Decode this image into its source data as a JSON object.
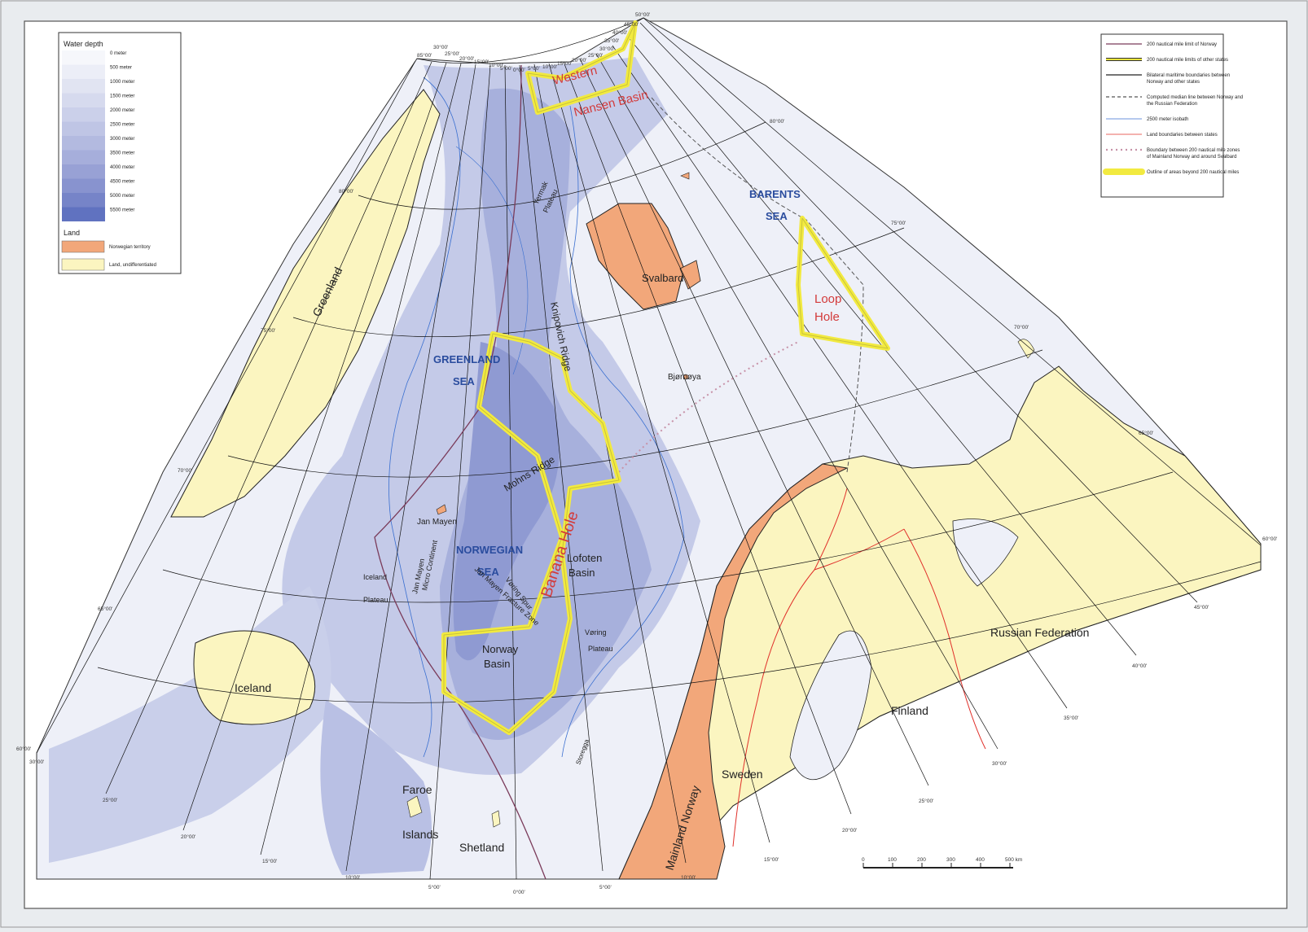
{
  "legend_depth": {
    "title": "Water depth",
    "levels": [
      {
        "label": "0 meter",
        "color": "#f6f7fb"
      },
      {
        "label": "500 meter",
        "color": "#eceef7"
      },
      {
        "label": "1000 meter",
        "color": "#e1e4f2"
      },
      {
        "label": "1500 meter",
        "color": "#d6daee"
      },
      {
        "label": "2000 meter",
        "color": "#cbd0ea"
      },
      {
        "label": "2500 meter",
        "color": "#bfc5e5"
      },
      {
        "label": "3000 meter",
        "color": "#b3bae0"
      },
      {
        "label": "3500 meter",
        "color": "#a6aedb"
      },
      {
        "label": "4000 meter",
        "color": "#98a1d5"
      },
      {
        "label": "4500 meter",
        "color": "#8893cf"
      },
      {
        "label": "5000 meter",
        "color": "#7684c8"
      },
      {
        "label": "5500 meter",
        "color": "#6072c0"
      }
    ],
    "land_title": "Land",
    "land": [
      {
        "label": "Norwegian territory",
        "color": "#f2a77a"
      },
      {
        "label": "Land, undifferentiated",
        "color": "#fbf5c0"
      }
    ]
  },
  "legend_lines": [
    {
      "label": "200 nautical mile limit of Norway",
      "color": "#7a3b5a",
      "style": "solid"
    },
    {
      "label": "200 nautical mile limits of other states",
      "color": "#e8e33a",
      "style": "double"
    },
    {
      "label": "Bilateral maritime boundaries between Norway and other states",
      "color": "#222222",
      "style": "solid"
    },
    {
      "label": "Computed median line between Norway and the Russian Federation",
      "color": "#555555",
      "style": "dashed"
    },
    {
      "label": "2500 meter isobath",
      "color": "#3a6fd0",
      "style": "thin"
    },
    {
      "label": "Land boundaries between states",
      "color": "#e0302a",
      "style": "thin"
    },
    {
      "label": "Boundary between 200 nautical mile zones of Mainland Norway and around Svalbard",
      "color": "#c792a8",
      "style": "dotted"
    },
    {
      "label": "Outline of areas beyond 200 nautical miles",
      "color": "#f2ea40",
      "style": "thick"
    }
  ],
  "areas": {
    "western_nansen_1": "Western",
    "western_nansen_2": "Nansen Basin",
    "loop_hole_1": "Loop",
    "loop_hole_2": "Hole",
    "banana_hole": "Banana Hole"
  },
  "seas": {
    "barents_1": "BARENTS",
    "barents_2": "SEA",
    "greenland_1": "GREENLAND",
    "greenland_2": "SEA",
    "norwegian_1": "NORWEGIAN",
    "norwegian_2": "SEA"
  },
  "places": {
    "greenland": "Greenland",
    "svalbard": "Svalbard",
    "bjornoya": "Bjørnøya",
    "jan_mayen": "Jan Mayen",
    "iceland": "Iceland",
    "faroe_1": "Faroe",
    "faroe_2": "Islands",
    "shetland": "Shetland",
    "mainland_norway": "Mainland Norway",
    "sweden": "Sweden",
    "finland": "Finland",
    "russia": "Russian Federation"
  },
  "features": {
    "yermak_1": "Yermak",
    "yermak_2": "Plateau",
    "knipovich": "Knipovich Ridge",
    "mohns": "Mohns Ridge",
    "lofoten_1": "Lofoten",
    "lofoten_2": "Basin",
    "norway_basin_1": "Norway",
    "norway_basin_2": "Basin",
    "iceland_plateau_1": "Iceland",
    "iceland_plateau_2": "Plateau",
    "jm_micro_1": "Jan Mayen",
    "jm_micro_2": "Micro Continent",
    "jm_fracture": "Jan Mayen Fracture Zone",
    "voring_spur": "Vøring Spur",
    "voring_plateau_1": "Vøring",
    "voring_plateau_2": "Plateau",
    "storegga": "Storegga"
  },
  "graticule": {
    "lat_labels": [
      "85°00'",
      "80°00'",
      "75°00'",
      "70°00'",
      "65°00'",
      "60°00'"
    ],
    "right_lat_labels": [
      "80°00'",
      "75°00'",
      "70°00'",
      "65°00'",
      "60°00'"
    ],
    "top_lon_labels": [
      "30°00'",
      "25°00'",
      "20°00'",
      "15°00'",
      "10°00'",
      "5°00'",
      "0°00'",
      "5°00'",
      "10°00'",
      "15°00'",
      "20°00'",
      "25°00'",
      "30°00'",
      "35°00'",
      "40°00'",
      "45°00'",
      "50°00'"
    ],
    "left_lon_labels": [
      "30°00'",
      "25°00'",
      "20°00'",
      "15°00'",
      "10°00'",
      "5°00'",
      "0°00'"
    ],
    "right_lon_labels": [
      "5°00'",
      "10°00'",
      "15°00'",
      "20°00'",
      "25°00'",
      "30°00'",
      "35°00'",
      "40°00'",
      "45°00'"
    ]
  },
  "scale_bar": {
    "ticks": [
      "0",
      "100",
      "200",
      "300",
      "400"
    ],
    "end_label": "500 km"
  }
}
